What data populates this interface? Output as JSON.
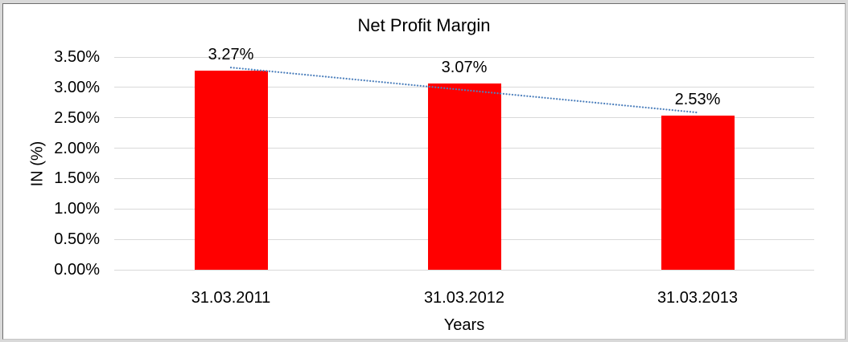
{
  "chart_data": {
    "type": "bar",
    "title": "Net Profit Margin",
    "xlabel": "Years",
    "ylabel": "IN (%)",
    "categories": [
      "31.03.2011",
      "31.03.2012",
      "31.03.2013"
    ],
    "series": [
      {
        "name": "Net Profit Margin",
        "values": [
          3.27,
          3.07,
          2.53
        ]
      }
    ],
    "data_labels": [
      "3.27%",
      "3.07%",
      "2.53%"
    ],
    "ylim": [
      0,
      3.5
    ],
    "ytick_step": 0.5,
    "ytick_labels": [
      "0.00%",
      "0.50%",
      "1.00%",
      "1.50%",
      "2.00%",
      "2.50%",
      "3.00%",
      "3.50%"
    ],
    "grid": true,
    "legend": "none",
    "colors": {
      "bar": "#ff0000",
      "trendline": "#4f81bd",
      "gridline": "#d9d9d9",
      "text": "#000000",
      "frame_background": "#ffffff",
      "outer_background": "#d9d9d9"
    },
    "trendline": {
      "type": "linear",
      "style": "dotted"
    }
  }
}
